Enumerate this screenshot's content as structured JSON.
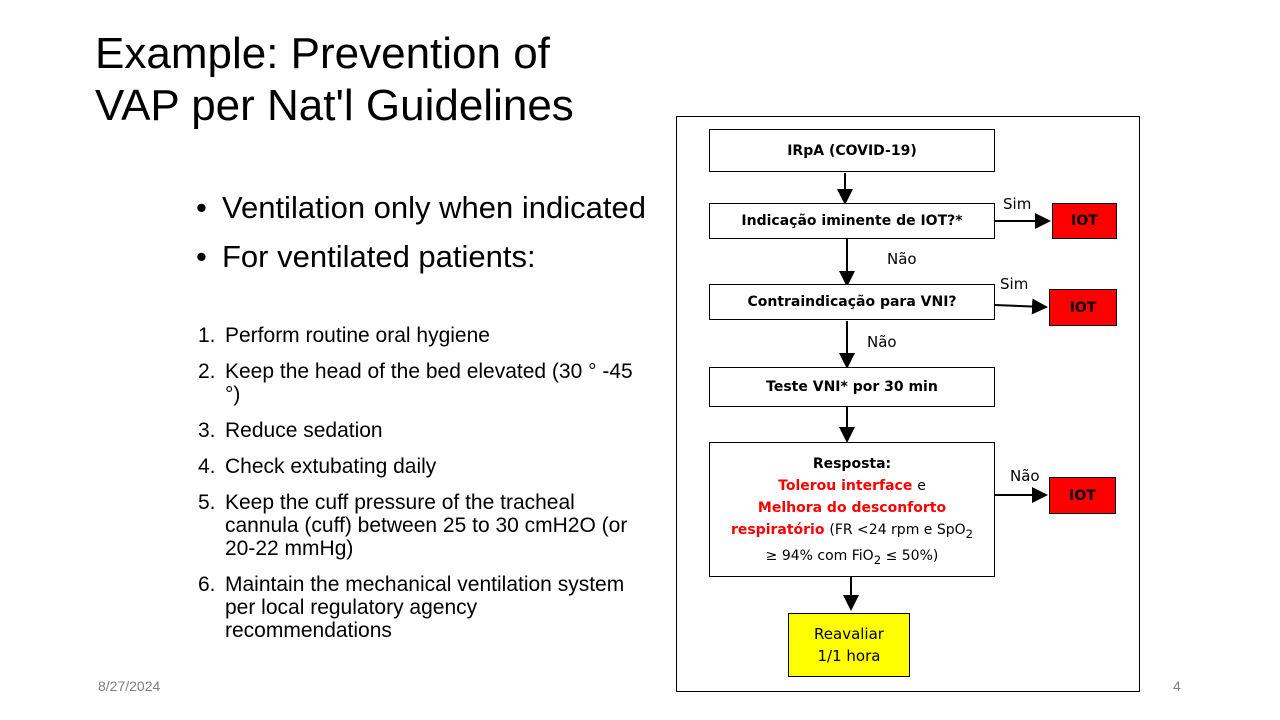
{
  "slide": {
    "title_line1": "Example:  Prevention of",
    "title_line2": "VAP per Nat'l Guidelines",
    "bullets": [
      "Ventilation only when indicated",
      "For ventilated patients:"
    ],
    "numbered": [
      {
        "num": "1.",
        "text": "Perform routine oral hygiene"
      },
      {
        "num": "2.",
        "text": "Keep the head of the bed elevated (30 ° -45 °)"
      },
      {
        "num": "3.",
        "text": "Reduce sedation"
      },
      {
        "num": "4.",
        "text": "Check extubating daily"
      },
      {
        "num": "5.",
        "text": "Keep the cuff pressure of the tracheal cannula (cuff) between 25 to 30 cmH2O (or 20-22 mmHg)"
      },
      {
        "num": "6.",
        "text": "Maintain the mechanical ventilation system per local regulatory agency recommendations"
      }
    ],
    "date": "8/27/2024",
    "page_number": "4"
  },
  "flowchart": {
    "start": "IRpA (COVID-19)",
    "q1": "Indicação iminente de IOT?*",
    "q2": "Contraindicação para VNI?",
    "test": "Teste VNI* por 30 min",
    "resp_title": "Resposta:",
    "resp_red1": "Tolerou interface",
    "resp_e": "e",
    "resp_red2a": "Melhora do desconforto",
    "resp_red2b": "respiratório",
    "resp_fr": "(FR <24 rpm e SpO",
    "resp_sub2": "2",
    "resp_line4": "≥ 94% com FiO",
    "resp_line4_end": " ≤ 50%)",
    "reavaliar1": "Reavaliar",
    "reavaliar2": "1/1 hora",
    "iot": "IOT",
    "sim": "Sim",
    "nao": "Não",
    "colors": {
      "iot_box": "#ff0000",
      "highlight_text": "#ff0000",
      "reavaliar_box": "#ffff00"
    }
  }
}
